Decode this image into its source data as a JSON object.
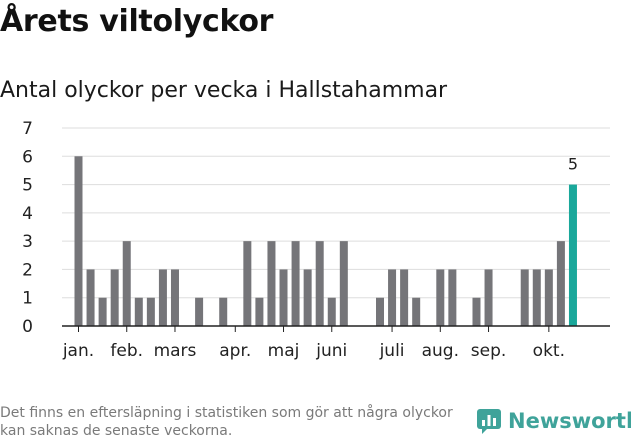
{
  "header": {
    "title": "Årets viltolyckor",
    "subtitle": "Antal olyckor per vecka i Hallstahammar"
  },
  "footer": {
    "note": "Det finns en eftersläpning i statistiken som gör att några olyckor kan saknas de senaste veckorna.",
    "brand": "Newsworthy"
  },
  "colors": {
    "bar": "#757579",
    "highlight": "#1aa89b",
    "grid": "#dddddd",
    "axis": "#222222",
    "brand": "#3fa39a"
  },
  "chart_data": {
    "type": "bar",
    "title": "Antal olyckor per vecka i Hallstahammar",
    "xlabel": "",
    "ylabel": "",
    "ylim": [
      0,
      7
    ],
    "yticks": [
      0,
      1,
      2,
      3,
      4,
      5,
      6,
      7
    ],
    "grid": true,
    "weeks": [
      1,
      2,
      3,
      4,
      5,
      6,
      7,
      8,
      9,
      10,
      11,
      12,
      13,
      14,
      15,
      16,
      17,
      18,
      19,
      20,
      21,
      22,
      23,
      24,
      25,
      26,
      27,
      28,
      29,
      30,
      31,
      32,
      33,
      34,
      35,
      36,
      37,
      38,
      39,
      40,
      41,
      42
    ],
    "values": [
      6,
      2,
      1,
      2,
      3,
      1,
      1,
      2,
      2,
      0,
      1,
      0,
      1,
      0,
      3,
      1,
      3,
      2,
      3,
      2,
      3,
      1,
      3,
      0,
      0,
      1,
      2,
      2,
      1,
      0,
      2,
      2,
      0,
      1,
      2,
      0,
      0,
      2,
      2,
      2,
      3,
      5
    ],
    "highlight_index": 41,
    "highlight_label": "5",
    "month_labels": [
      {
        "label": "jan.",
        "week": 1
      },
      {
        "label": "feb.",
        "week": 5
      },
      {
        "label": "mars",
        "week": 9
      },
      {
        "label": "apr.",
        "week": 14
      },
      {
        "label": "maj",
        "week": 18
      },
      {
        "label": "juni",
        "week": 22
      },
      {
        "label": "juli",
        "week": 27
      },
      {
        "label": "aug.",
        "week": 31
      },
      {
        "label": "sep.",
        "week": 35
      },
      {
        "label": "okt.",
        "week": 40
      }
    ]
  }
}
